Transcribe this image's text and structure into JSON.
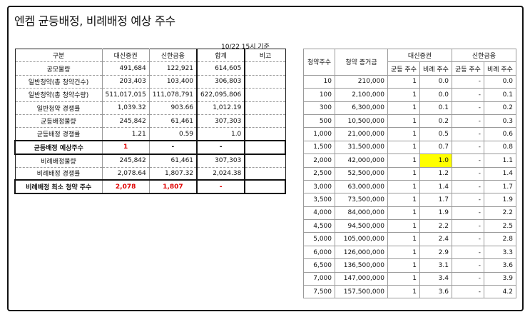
{
  "title": "엔켐 균등배정, 비례배정 예상 주수",
  "as_of": "10/22 15시 기준",
  "left": {
    "headers": [
      "구분",
      "대신증권",
      "신한금융",
      "합계",
      "비고"
    ],
    "rows": [
      {
        "label": "공모물량",
        "v1": "491,684",
        "v2": "122,921",
        "sum": "614,605",
        "note": ""
      },
      {
        "label": "일반청약(총 청약건수)",
        "v1": "203,403",
        "v2": "103,400",
        "sum": "306,803",
        "note": ""
      },
      {
        "label": "일반청약(총 청약수량)",
        "v1": "511,017,015",
        "v2": "111,078,791",
        "sum": "622,095,806",
        "note": ""
      },
      {
        "label": "일반청약 경쟁률",
        "v1": "1,039.32",
        "v2": "903.66",
        "sum": "1,012.19",
        "note": ""
      },
      {
        "label": "균등배정물량",
        "v1": "245,842",
        "v2": "61,461",
        "sum": "307,303",
        "note": ""
      },
      {
        "label": "균등배정 경쟁률",
        "v1": "1.21",
        "v2": "0.59",
        "sum": "1.0",
        "note": ""
      },
      {
        "label": "균등배정 예상주수",
        "v1": "1",
        "v2": "-",
        "sum": "-",
        "note": ""
      },
      {
        "label": "비례배정물량",
        "v1": "245,842",
        "v2": "61,461",
        "sum": "307,303",
        "note": ""
      },
      {
        "label": "비례배정 경쟁률",
        "v1": "2,078.64",
        "v2": "1,807.32",
        "sum": "2,024.38",
        "note": ""
      },
      {
        "label": "비례배정 최소 청약 주수",
        "v1": "2,078",
        "v2": "1,807",
        "sum": "-",
        "note": ""
      }
    ]
  },
  "right": {
    "header1": {
      "shares": "청약주수",
      "deposit": "청약 증거금",
      "daishin": "대신증권",
      "shinhan": "신한금융"
    },
    "header2": {
      "eq": "균등 주수",
      "pr": "비례 주수"
    },
    "rows": [
      [
        "10",
        "210,000",
        "1",
        "0.0",
        "-",
        "0.0"
      ],
      [
        "100",
        "2,100,000",
        "1",
        "0.0",
        "-",
        "0.1"
      ],
      [
        "300",
        "6,300,000",
        "1",
        "0.1",
        "-",
        "0.2"
      ],
      [
        "500",
        "10,500,000",
        "1",
        "0.2",
        "-",
        "0.3"
      ],
      [
        "1,000",
        "21,000,000",
        "1",
        "0.5",
        "-",
        "0.6"
      ],
      [
        "1,500",
        "31,500,000",
        "1",
        "0.7",
        "-",
        "0.8"
      ],
      [
        "2,000",
        "42,000,000",
        "1",
        "1.0",
        "-",
        "1.1"
      ],
      [
        "2,500",
        "52,500,000",
        "1",
        "1.2",
        "-",
        "1.4"
      ],
      [
        "3,000",
        "63,000,000",
        "1",
        "1.4",
        "-",
        "1.7"
      ],
      [
        "3,500",
        "73,500,000",
        "1",
        "1.7",
        "-",
        "1.9"
      ],
      [
        "4,000",
        "84,000,000",
        "1",
        "1.9",
        "-",
        "2.2"
      ],
      [
        "4,500",
        "94,500,000",
        "1",
        "2.2",
        "-",
        "2.5"
      ],
      [
        "5,000",
        "105,000,000",
        "1",
        "2.4",
        "-",
        "2.8"
      ],
      [
        "6,000",
        "126,000,000",
        "1",
        "2.9",
        "-",
        "3.3"
      ],
      [
        "6,500",
        "136,500,000",
        "1",
        "3.1",
        "-",
        "3.6"
      ],
      [
        "7,000",
        "147,000,000",
        "1",
        "3.4",
        "-",
        "3.9"
      ],
      [
        "7,500",
        "157,500,000",
        "1",
        "3.6",
        "-",
        "4.2"
      ]
    ],
    "highlight_color": "#ffff00"
  }
}
